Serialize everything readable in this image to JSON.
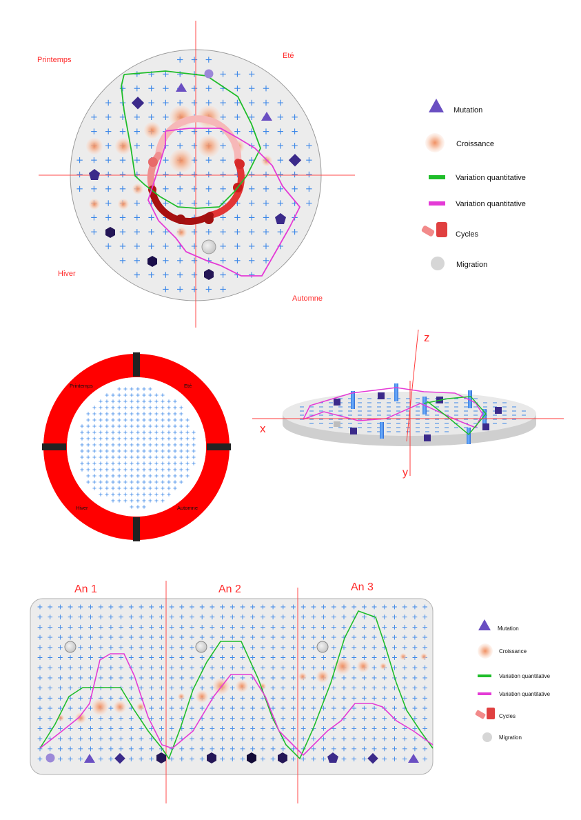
{
  "circle_diagram": {
    "seasons": {
      "spring": "Printemps",
      "summer": "Eté",
      "winter": "Hiver",
      "autumn": "Automne"
    }
  },
  "legend_top": {
    "mutation": "Mutation",
    "growth": "Croissance",
    "variation_green": "Variation quantitative",
    "variation_pink": "Variation quantitative",
    "cycles": "Cycles",
    "migration": "Migration"
  },
  "ring_diagram": {
    "seasons": {
      "spring": "Printemps",
      "summer": "Eté",
      "winter": "Hiver",
      "autumn": "Automne"
    }
  },
  "axes_3d": {
    "x": "x",
    "y": "y",
    "z": "z"
  },
  "timeline": {
    "years": [
      "An 1",
      "An 2",
      "An 3"
    ]
  },
  "legend_bottom": {
    "mutation": "Mutation",
    "growth": "Croissance",
    "variation_green": "Variation quantitative",
    "variation_pink": "Variation quantitative",
    "cycles": "Cycles",
    "migration": "Migration"
  },
  "colors": {
    "red": "#ff0000",
    "grid_plus": "#3a86e8",
    "green": "#1fbd2a",
    "magenta": "#e43ad6",
    "purple": "#6a4fc2",
    "dark_purple": "#2b1c6e",
    "disc": "#ececec"
  }
}
